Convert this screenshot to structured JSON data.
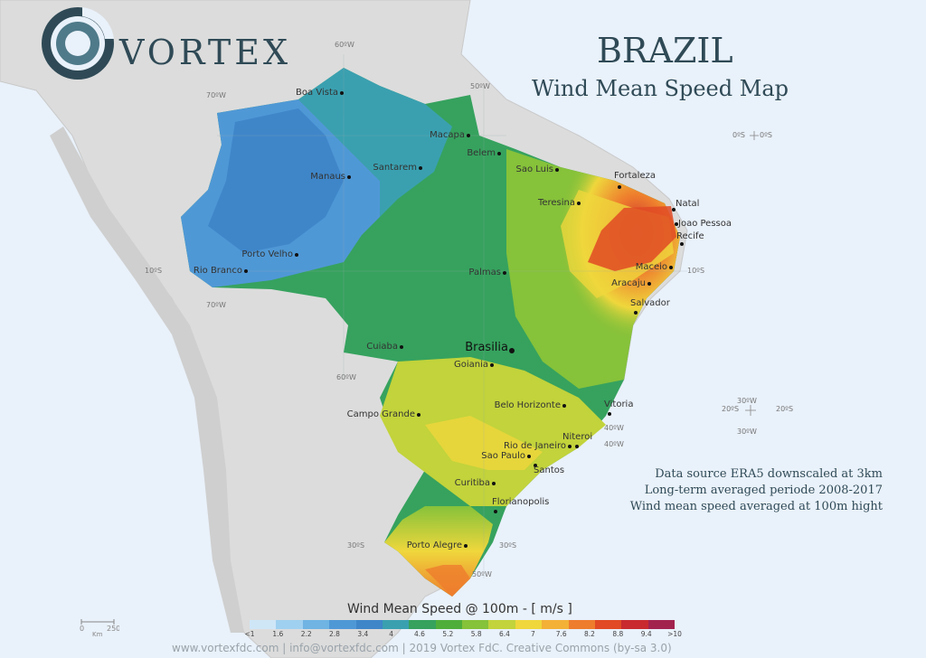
{
  "brand": {
    "name": "VORTEX",
    "logo_icon": "vortex-logo-icon"
  },
  "title": "BRAZIL",
  "subtitle": "Wind Mean Speed Map",
  "notes": [
    "Data source ERA5 downscaled at 3km",
    "Long-term averaged periode 2008-2017",
    "Wind mean speed averaged at 100m hight"
  ],
  "legend": {
    "title": "Wind Mean Speed @ 100m - [ m/s ]",
    "ticks": [
      "<1",
      "1.6",
      "2.2",
      "2.8",
      "3.4",
      "4",
      "4.6",
      "5.2",
      "5.8",
      "6.4",
      "7",
      "7.6",
      "8.2",
      "8.8",
      "9.4",
      ">10"
    ],
    "colors": [
      "#cfe6f7",
      "#9fd0f0",
      "#6fb4e3",
      "#4f98d6",
      "#3f86c9",
      "#3aa0b0",
      "#36a25e",
      "#4fae3a",
      "#86c23a",
      "#c2d33b",
      "#efd73c",
      "#f3b137",
      "#ee7d2d",
      "#e14a25",
      "#c82a2f",
      "#a3234f"
    ]
  },
  "scale": {
    "zero": "0",
    "max": "250",
    "unit": "Km"
  },
  "footer": "www.vortexfdc.com | info@vortexfdc.com | 2019 Vortex FdC. Creative Commons (by-sa 3.0)",
  "graticule": [
    "60ºW",
    "50ºW",
    "70ºW",
    "70ºW",
    "60ºW",
    "40ºW",
    "40ºW",
    "50ºW",
    "10ºS",
    "10ºS",
    "30ºS",
    "30ºS",
    "0ºS",
    "0ºS",
    "20ºS",
    "20ºS",
    "30ºW",
    "30ºW"
  ],
  "cities": [
    {
      "name": "Boa Vista"
    },
    {
      "name": "Macapa"
    },
    {
      "name": "Belem"
    },
    {
      "name": "Sao Luis"
    },
    {
      "name": "Manaus"
    },
    {
      "name": "Santarem"
    },
    {
      "name": "Fortaleza"
    },
    {
      "name": "Teresina"
    },
    {
      "name": "Natal"
    },
    {
      "name": "Joao Pessoa"
    },
    {
      "name": "Recife"
    },
    {
      "name": "Porto Velho"
    },
    {
      "name": "Rio Branco"
    },
    {
      "name": "Palmas"
    },
    {
      "name": "Maceio"
    },
    {
      "name": "Aracaju"
    },
    {
      "name": "Salvador"
    },
    {
      "name": "Cuiaba"
    },
    {
      "name": "Brasilia"
    },
    {
      "name": "Goiania"
    },
    {
      "name": "Belo Horizonte"
    },
    {
      "name": "Vitoria"
    },
    {
      "name": "Campo Grande"
    },
    {
      "name": "Rio de Janeiro"
    },
    {
      "name": "Niteroi"
    },
    {
      "name": "Sao Paulo"
    },
    {
      "name": "Santos"
    },
    {
      "name": "Curitiba"
    },
    {
      "name": "Florianopolis"
    },
    {
      "name": "Porto Alegre"
    }
  ]
}
